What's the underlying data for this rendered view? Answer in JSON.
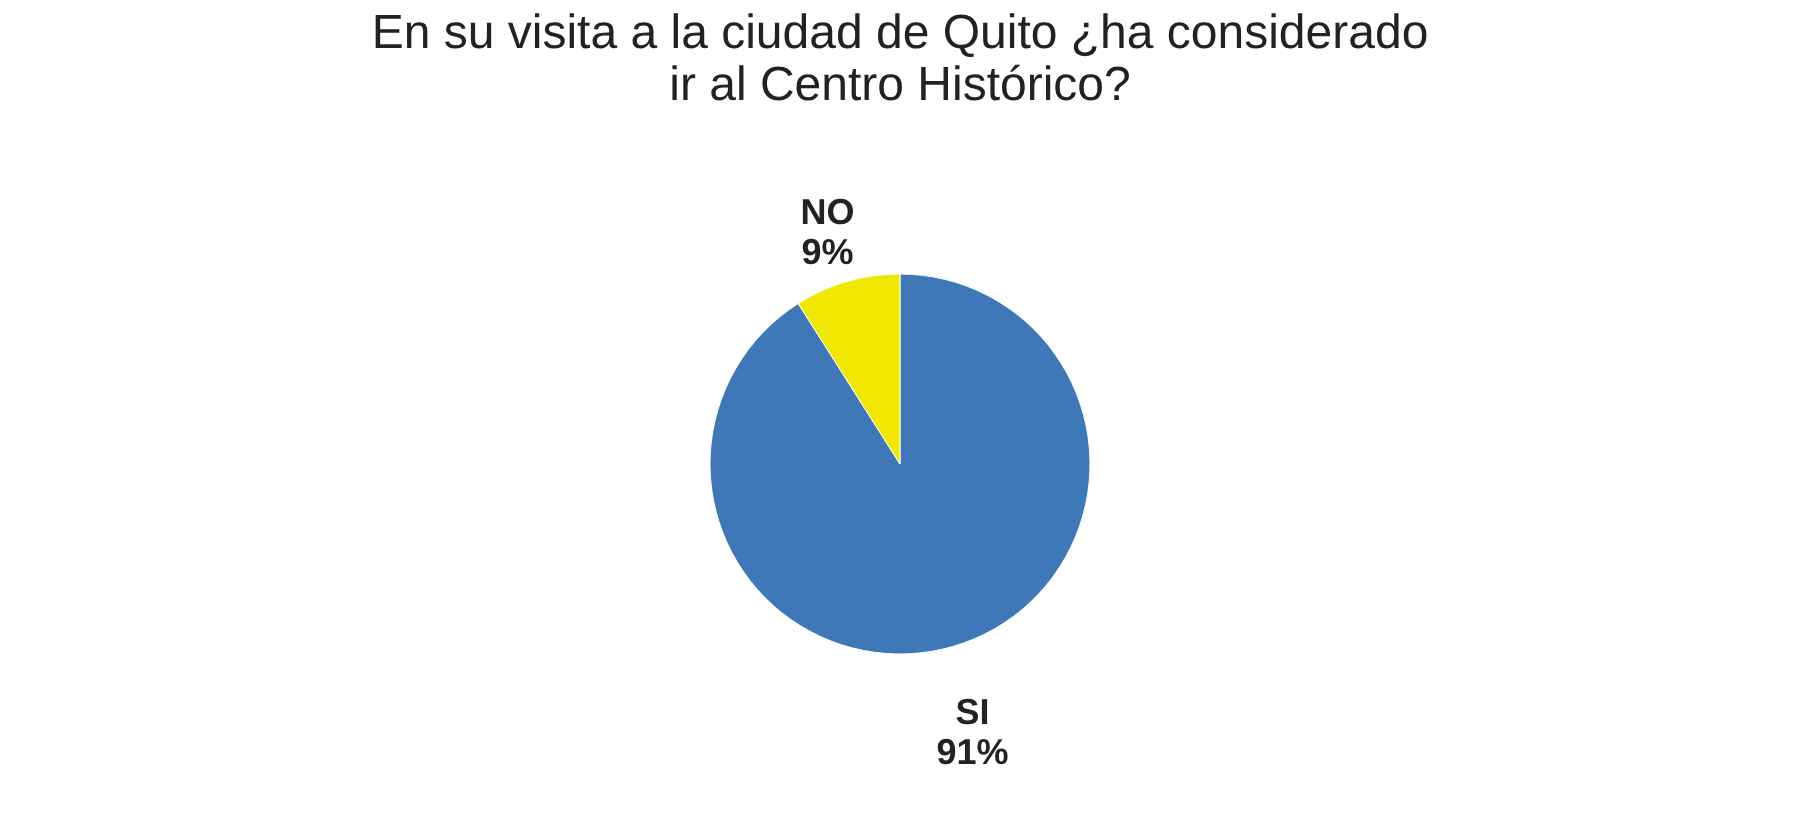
{
  "chart_data": {
    "type": "pie",
    "title": [
      "En su visita a la ciudad de Quito ¿ha considerado",
      "ir al Centro Histórico?"
    ],
    "categories": [
      "SI",
      "NO"
    ],
    "values": [
      91,
      9
    ],
    "colors": [
      "#3f78b9",
      "#f0e800"
    ],
    "value_labels": [
      "91%",
      "9%"
    ],
    "legend": false
  }
}
